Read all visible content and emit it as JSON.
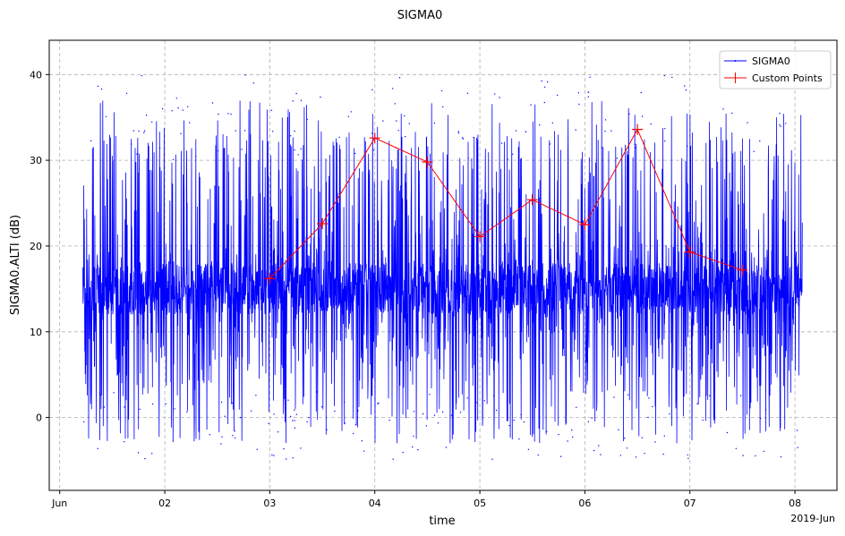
{
  "chart_data": {
    "type": "line",
    "title": "SIGMA0",
    "xlabel": "time",
    "ylabel": "SIGMA0.ALTI (dB)",
    "x_offset_label": "2019-Jun",
    "xticks": [
      "Jun",
      "02",
      "03",
      "04",
      "05",
      "06",
      "07",
      "08"
    ],
    "xtick_values": [
      1,
      2,
      3,
      4,
      5,
      6,
      7,
      8
    ],
    "yticks": [
      0,
      10,
      20,
      30,
      40
    ],
    "xlim": [
      0.9,
      8.4
    ],
    "ylim": [
      -8.5,
      44
    ],
    "grid": true,
    "legend_position": "top-right",
    "series": [
      {
        "name": "SIGMA0",
        "color": "#0000ff",
        "style": "line with dot markers",
        "x_range": [
          1.22,
          8.07
        ],
        "typical_range": [
          12,
          18
        ],
        "overall_range": [
          -6,
          41.5
        ]
      },
      {
        "name": "Custom Points",
        "color": "#ff0000",
        "marker": "+",
        "x": [
          3.0,
          3.5,
          4.0,
          4.5,
          5.0,
          5.5,
          6.0,
          6.5,
          7.0,
          7.5
        ],
        "y": [
          16.2,
          22.6,
          32.6,
          29.8,
          21.1,
          25.4,
          22.5,
          33.6,
          19.3,
          17.2
        ]
      }
    ]
  }
}
